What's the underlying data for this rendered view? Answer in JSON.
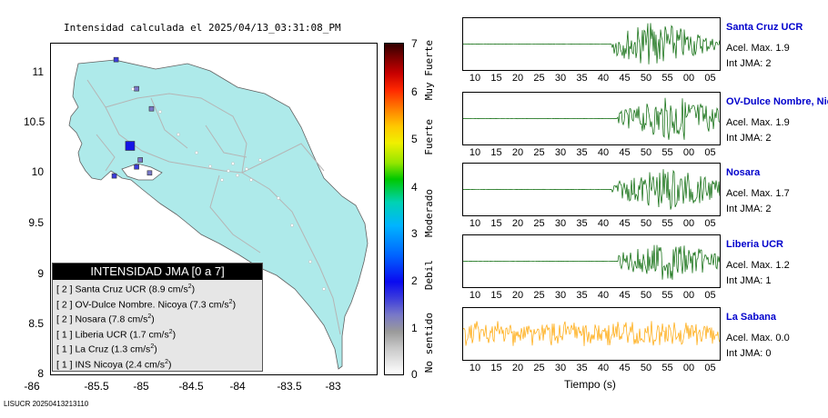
{
  "map": {
    "title": "Intensidad calculada el 2025/04/13_03:31:08_PM",
    "y_ticks": [
      "11",
      "10.5",
      "10",
      "9.5",
      "9",
      "8.5",
      "8"
    ],
    "x_ticks": [
      "-86",
      "-85.5",
      "-85",
      "-84.5",
      "-84",
      "-83.5",
      "-83"
    ],
    "land_color": "#aeeaea",
    "stations": [
      {
        "lon": -85.6,
        "lat": 11.14,
        "intensity": 2
      },
      {
        "lon": -85.38,
        "lat": 10.85,
        "intensity": 1
      },
      {
        "lon": -85.22,
        "lat": 10.65,
        "intensity": 1
      },
      {
        "lon": -85.45,
        "lat": 10.28,
        "intensity": 2
      },
      {
        "lon": -85.62,
        "lat": 9.98,
        "intensity": 2
      },
      {
        "lon": -85.38,
        "lat": 10.07,
        "intensity": 2
      },
      {
        "lon": -85.34,
        "lat": 10.14,
        "intensity": 1
      },
      {
        "lon": -85.24,
        "lat": 10.01,
        "intensity": 1
      }
    ]
  },
  "legend": {
    "header": "INTENSIDAD JMA [0 a 7]",
    "rows": [
      {
        "level": "[ 2 ]",
        "name": "Santa Cruz UCR",
        "value": "(8.9 cm/s",
        "sup": "2",
        "tail": ")"
      },
      {
        "level": "[ 2 ]",
        "name": "OV-Dulce Nombre. Nicoya",
        "value": "(7.3 cm/s",
        "sup": "2",
        "tail": ")"
      },
      {
        "level": "[ 2 ]",
        "name": "Nosara",
        "value": "(7.8 cm/s",
        "sup": "2",
        "tail": ")"
      },
      {
        "level": "[ 1 ]",
        "name": "Liberia UCR",
        "value": "(1.7 cm/s",
        "sup": "2",
        "tail": ")"
      },
      {
        "level": "[ 1 ]",
        "name": "La Cruz",
        "value": "(1.3 cm/s",
        "sup": "2",
        "tail": ")"
      },
      {
        "level": "[ 1 ]",
        "name": "INS Nicoya",
        "value": "(2.4 cm/s",
        "sup": "2",
        "tail": ")"
      }
    ]
  },
  "colorbar": {
    "ticks": [
      "7",
      "6",
      "5",
      "4",
      "3",
      "2",
      "1",
      "0"
    ],
    "labels": [
      "Muy Fuerte",
      "Fuerte",
      "Moderado",
      "Debil",
      "No sentido"
    ]
  },
  "panels": {
    "time_ticks": [
      "10",
      "15",
      "20",
      "25",
      "30",
      "35",
      "40",
      "45",
      "50",
      "55",
      "00",
      "05"
    ],
    "time_label": "Tiempo (s)",
    "stations": [
      {
        "name": "Santa Cruz UCR",
        "acel": "Acel. Max. 1.9",
        "jma": "Int JMA: 2",
        "color": "#006400",
        "onset": 0.58,
        "peak": 0.75,
        "amp": 1.0
      },
      {
        "name": "OV-Dulce Nombre, Nicoya",
        "acel": "Acel. Max. 1.9",
        "jma": "Int JMA: 2",
        "color": "#006400",
        "onset": 0.6,
        "peak": 0.83,
        "amp": 1.0
      },
      {
        "name": "Nosara",
        "acel": "Acel. Max. 1.7",
        "jma": "Int JMA: 2",
        "color": "#006400",
        "onset": 0.58,
        "peak": 0.8,
        "amp": 0.95
      },
      {
        "name": "Liberia UCR",
        "acel": "Acel. Max. 1.2",
        "jma": "Int JMA: 1",
        "color": "#006400",
        "onset": 0.6,
        "peak": 0.8,
        "amp": 0.85
      },
      {
        "name": "La Sabana",
        "acel": "Acel. Max. 0.0",
        "jma": "Int JMA: 0",
        "color": "#ffa500",
        "onset": 0.0,
        "peak": 0.5,
        "amp": 0.55
      }
    ]
  },
  "footer": "LISUCR 20250413213110"
}
